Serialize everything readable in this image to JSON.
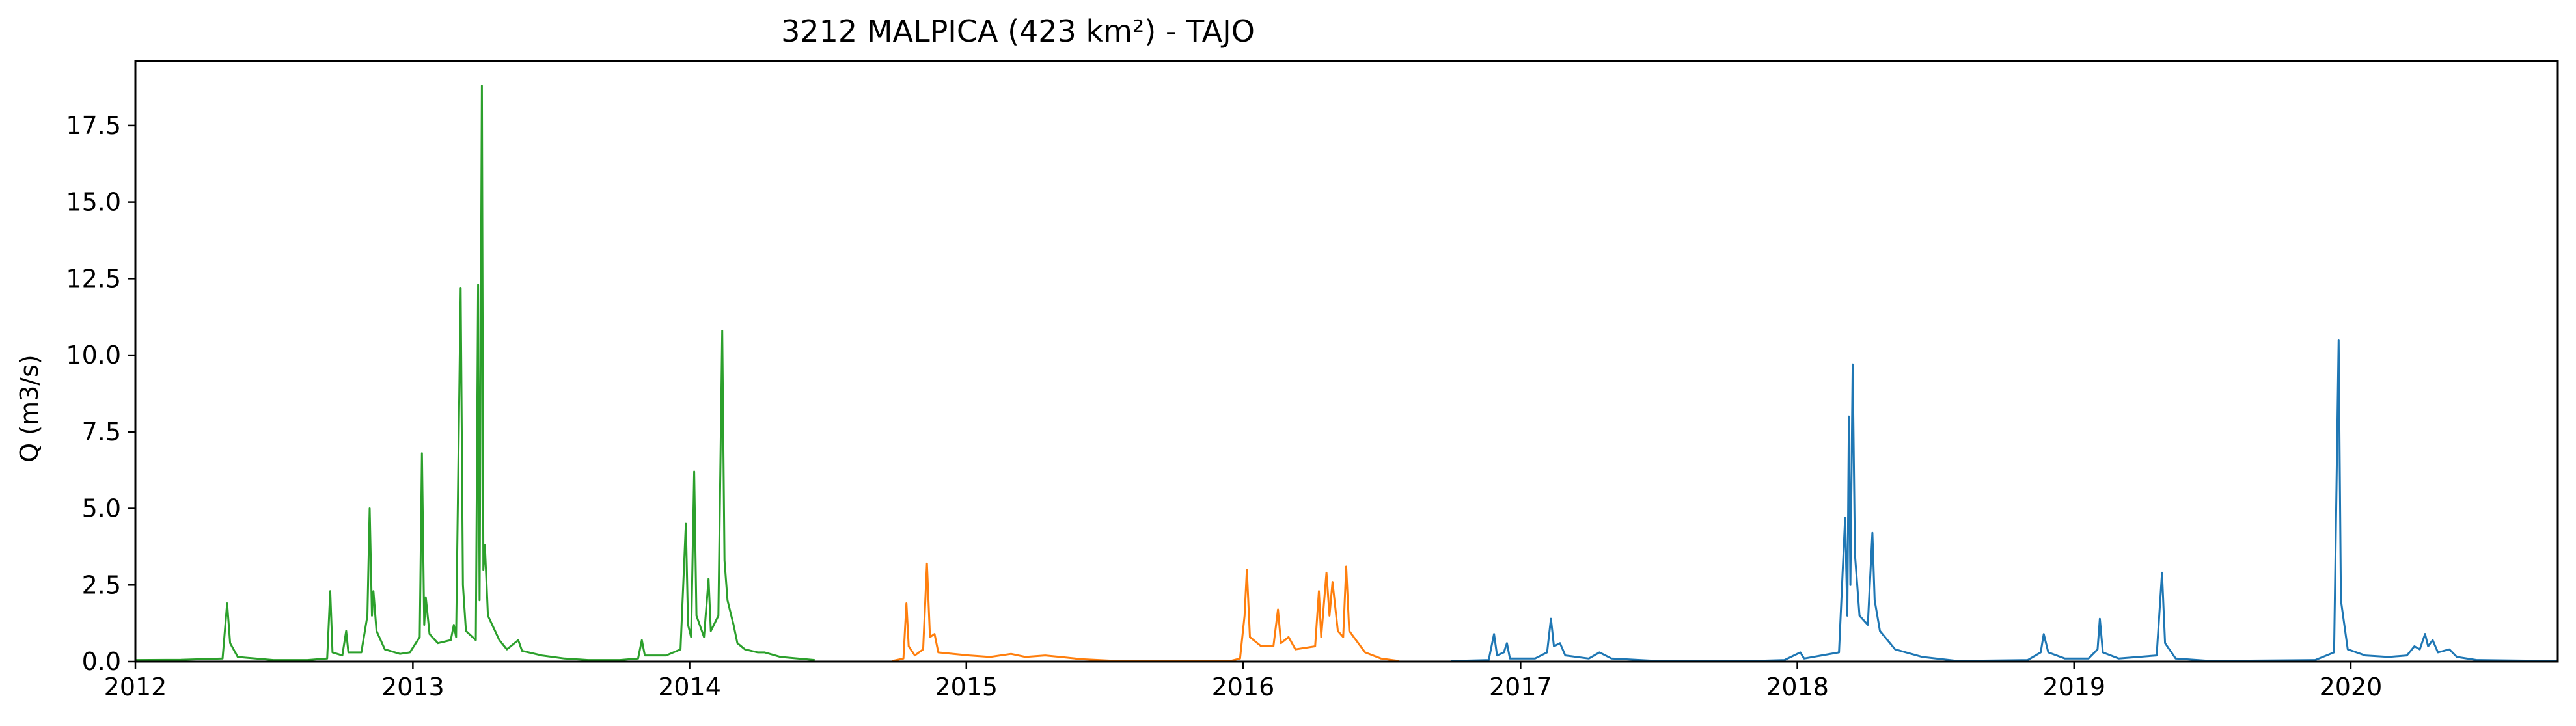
{
  "chart_data": {
    "type": "line",
    "title": "3212 MALPICA (423 km²) - TAJO",
    "xlabel": "",
    "ylabel": "Q (m3/s)",
    "x_type": "date",
    "xlim": [
      "2012-01-01",
      "2020-09-30"
    ],
    "ylim": [
      0,
      19.6
    ],
    "xticks": [
      "2012",
      "2013",
      "2014",
      "2015",
      "2016",
      "2017",
      "2018",
      "2019",
      "2020"
    ],
    "yticks": [
      "0.0",
      "2.5",
      "5.0",
      "7.5",
      "10.0",
      "12.5",
      "15.0",
      "17.5"
    ],
    "grid": false,
    "legend": "none",
    "series": [
      {
        "color": "#2ca02c",
        "points": [
          [
            "2012-01-01",
            0.05
          ],
          [
            "2012-03-01",
            0.06
          ],
          [
            "2012-04-25",
            0.1
          ],
          [
            "2012-05-01",
            1.9
          ],
          [
            "2012-05-05",
            0.6
          ],
          [
            "2012-05-15",
            0.15
          ],
          [
            "2012-07-01",
            0.05
          ],
          [
            "2012-08-15",
            0.05
          ],
          [
            "2012-09-10",
            0.1
          ],
          [
            "2012-09-14",
            2.3
          ],
          [
            "2012-09-17",
            0.3
          ],
          [
            "2012-09-30",
            0.2
          ],
          [
            "2012-10-05",
            1.0
          ],
          [
            "2012-10-08",
            0.3
          ],
          [
            "2012-10-25",
            0.3
          ],
          [
            "2012-11-02",
            1.5
          ],
          [
            "2012-11-05",
            5.0
          ],
          [
            "2012-11-08",
            1.5
          ],
          [
            "2012-11-10",
            2.3
          ],
          [
            "2012-11-14",
            1.0
          ],
          [
            "2012-11-25",
            0.4
          ],
          [
            "2012-12-15",
            0.25
          ],
          [
            "2012-12-28",
            0.3
          ],
          [
            "2013-01-10",
            0.8
          ],
          [
            "2013-01-13",
            6.8
          ],
          [
            "2013-01-16",
            1.2
          ],
          [
            "2013-01-18",
            2.1
          ],
          [
            "2013-01-23",
            0.9
          ],
          [
            "2013-02-03",
            0.6
          ],
          [
            "2013-02-20",
            0.7
          ],
          [
            "2013-02-24",
            1.2
          ],
          [
            "2013-02-27",
            0.8
          ],
          [
            "2013-03-05",
            12.2
          ],
          [
            "2013-03-08",
            2.5
          ],
          [
            "2013-03-12",
            1.0
          ],
          [
            "2013-03-25",
            0.7
          ],
          [
            "2013-03-28",
            12.3
          ],
          [
            "2013-03-30",
            2.0
          ],
          [
            "2013-04-02",
            18.8
          ],
          [
            "2013-04-04",
            3.0
          ],
          [
            "2013-04-06",
            3.8
          ],
          [
            "2013-04-10",
            1.5
          ],
          [
            "2013-04-25",
            0.7
          ],
          [
            "2013-05-05",
            0.4
          ],
          [
            "2013-05-20",
            0.7
          ],
          [
            "2013-05-25",
            0.35
          ],
          [
            "2013-06-20",
            0.2
          ],
          [
            "2013-07-20",
            0.1
          ],
          [
            "2013-08-20",
            0.05
          ],
          [
            "2013-10-01",
            0.05
          ],
          [
            "2013-10-25",
            0.1
          ],
          [
            "2013-10-30",
            0.7
          ],
          [
            "2013-11-03",
            0.2
          ],
          [
            "2013-12-01",
            0.2
          ],
          [
            "2013-12-20",
            0.4
          ],
          [
            "2013-12-27",
            4.5
          ],
          [
            "2013-12-30",
            1.2
          ],
          [
            "2014-01-03",
            0.8
          ],
          [
            "2014-01-07",
            6.2
          ],
          [
            "2014-01-10",
            1.5
          ],
          [
            "2014-01-20",
            0.8
          ],
          [
            "2014-01-26",
            2.7
          ],
          [
            "2014-01-29",
            1.0
          ],
          [
            "2014-02-08",
            1.5
          ],
          [
            "2014-02-13",
            10.8
          ],
          [
            "2014-02-16",
            3.3
          ],
          [
            "2014-02-20",
            2.0
          ],
          [
            "2014-02-28",
            1.2
          ],
          [
            "2014-03-05",
            0.6
          ],
          [
            "2014-03-15",
            0.4
          ],
          [
            "2014-04-01",
            0.3
          ],
          [
            "2014-04-10",
            0.3
          ],
          [
            "2014-05-01",
            0.15
          ],
          [
            "2014-06-15",
            0.05
          ]
        ]
      },
      {
        "color": "#ff7f0e",
        "points": [
          [
            "2014-09-25",
            0.02
          ],
          [
            "2014-10-10",
            0.1
          ],
          [
            "2014-10-14",
            1.9
          ],
          [
            "2014-10-17",
            0.5
          ],
          [
            "2014-10-25",
            0.2
          ],
          [
            "2014-11-05",
            0.4
          ],
          [
            "2014-11-10",
            3.2
          ],
          [
            "2014-11-14",
            0.8
          ],
          [
            "2014-11-20",
            0.9
          ],
          [
            "2014-11-25",
            0.3
          ],
          [
            "2014-12-15",
            0.25
          ],
          [
            "2015-01-05",
            0.2
          ],
          [
            "2015-02-01",
            0.15
          ],
          [
            "2015-03-01",
            0.25
          ],
          [
            "2015-03-20",
            0.15
          ],
          [
            "2015-04-15",
            0.2
          ],
          [
            "2015-05-05",
            0.15
          ],
          [
            "2015-06-01",
            0.08
          ],
          [
            "2015-07-20",
            0.02
          ],
          [
            "2015-12-15",
            0.02
          ],
          [
            "2015-12-28",
            0.1
          ],
          [
            "2016-01-03",
            1.5
          ],
          [
            "2016-01-06",
            3.0
          ],
          [
            "2016-01-10",
            0.8
          ],
          [
            "2016-01-25",
            0.5
          ],
          [
            "2016-02-10",
            0.5
          ],
          [
            "2016-02-16",
            1.7
          ],
          [
            "2016-02-20",
            0.6
          ],
          [
            "2016-03-01",
            0.8
          ],
          [
            "2016-03-10",
            0.4
          ],
          [
            "2016-04-05",
            0.5
          ],
          [
            "2016-04-10",
            2.3
          ],
          [
            "2016-04-13",
            0.8
          ],
          [
            "2016-04-20",
            2.9
          ],
          [
            "2016-04-24",
            1.5
          ],
          [
            "2016-04-28",
            2.6
          ],
          [
            "2016-05-05",
            1.0
          ],
          [
            "2016-05-12",
            0.8
          ],
          [
            "2016-05-16",
            3.1
          ],
          [
            "2016-05-20",
            1.0
          ],
          [
            "2016-06-10",
            0.3
          ],
          [
            "2016-07-01",
            0.1
          ],
          [
            "2016-07-25",
            0.02
          ]
        ]
      },
      {
        "color": "#1f77b4",
        "points": [
          [
            "2016-10-01",
            0.02
          ],
          [
            "2016-11-20",
            0.05
          ],
          [
            "2016-11-27",
            0.9
          ],
          [
            "2016-12-01",
            0.2
          ],
          [
            "2016-12-10",
            0.3
          ],
          [
            "2016-12-14",
            0.6
          ],
          [
            "2016-12-18",
            0.1
          ],
          [
            "2017-01-20",
            0.1
          ],
          [
            "2017-02-05",
            0.3
          ],
          [
            "2017-02-10",
            1.4
          ],
          [
            "2017-02-14",
            0.5
          ],
          [
            "2017-02-22",
            0.6
          ],
          [
            "2017-03-01",
            0.2
          ],
          [
            "2017-04-01",
            0.1
          ],
          [
            "2017-04-15",
            0.3
          ],
          [
            "2017-05-01",
            0.1
          ],
          [
            "2017-07-01",
            0.02
          ],
          [
            "2017-11-01",
            0.02
          ],
          [
            "2017-12-15",
            0.05
          ],
          [
            "2018-01-05",
            0.3
          ],
          [
            "2018-01-10",
            0.1
          ],
          [
            "2018-02-25",
            0.3
          ],
          [
            "2018-03-05",
            4.7
          ],
          [
            "2018-03-08",
            1.5
          ],
          [
            "2018-03-10",
            8.0
          ],
          [
            "2018-03-12",
            2.5
          ],
          [
            "2018-03-15",
            9.7
          ],
          [
            "2018-03-18",
            3.5
          ],
          [
            "2018-03-24",
            1.5
          ],
          [
            "2018-04-04",
            1.2
          ],
          [
            "2018-04-10",
            4.2
          ],
          [
            "2018-04-13",
            2.0
          ],
          [
            "2018-04-20",
            1.0
          ],
          [
            "2018-05-10",
            0.4
          ],
          [
            "2018-06-15",
            0.15
          ],
          [
            "2018-08-01",
            0.02
          ],
          [
            "2018-11-01",
            0.05
          ],
          [
            "2018-11-18",
            0.3
          ],
          [
            "2018-11-22",
            0.9
          ],
          [
            "2018-11-28",
            0.3
          ],
          [
            "2018-12-20",
            0.1
          ],
          [
            "2019-01-20",
            0.1
          ],
          [
            "2019-02-01",
            0.4
          ],
          [
            "2019-02-04",
            1.4
          ],
          [
            "2019-02-08",
            0.3
          ],
          [
            "2019-03-01",
            0.1
          ],
          [
            "2019-04-20",
            0.2
          ],
          [
            "2019-04-27",
            2.9
          ],
          [
            "2019-05-01",
            0.6
          ],
          [
            "2019-05-15",
            0.1
          ],
          [
            "2019-07-01",
            0.02
          ],
          [
            "2019-11-15",
            0.05
          ],
          [
            "2019-12-10",
            0.3
          ],
          [
            "2019-12-16",
            10.5
          ],
          [
            "2019-12-19",
            2.0
          ],
          [
            "2019-12-28",
            0.4
          ],
          [
            "2020-01-20",
            0.2
          ],
          [
            "2020-02-20",
            0.15
          ],
          [
            "2020-03-15",
            0.2
          ],
          [
            "2020-03-25",
            0.5
          ],
          [
            "2020-04-01",
            0.4
          ],
          [
            "2020-04-08",
            0.9
          ],
          [
            "2020-04-12",
            0.5
          ],
          [
            "2020-04-18",
            0.7
          ],
          [
            "2020-04-25",
            0.3
          ],
          [
            "2020-05-10",
            0.4
          ],
          [
            "2020-05-20",
            0.15
          ],
          [
            "2020-06-15",
            0.05
          ],
          [
            "2020-09-30",
            0.02
          ]
        ]
      }
    ]
  }
}
